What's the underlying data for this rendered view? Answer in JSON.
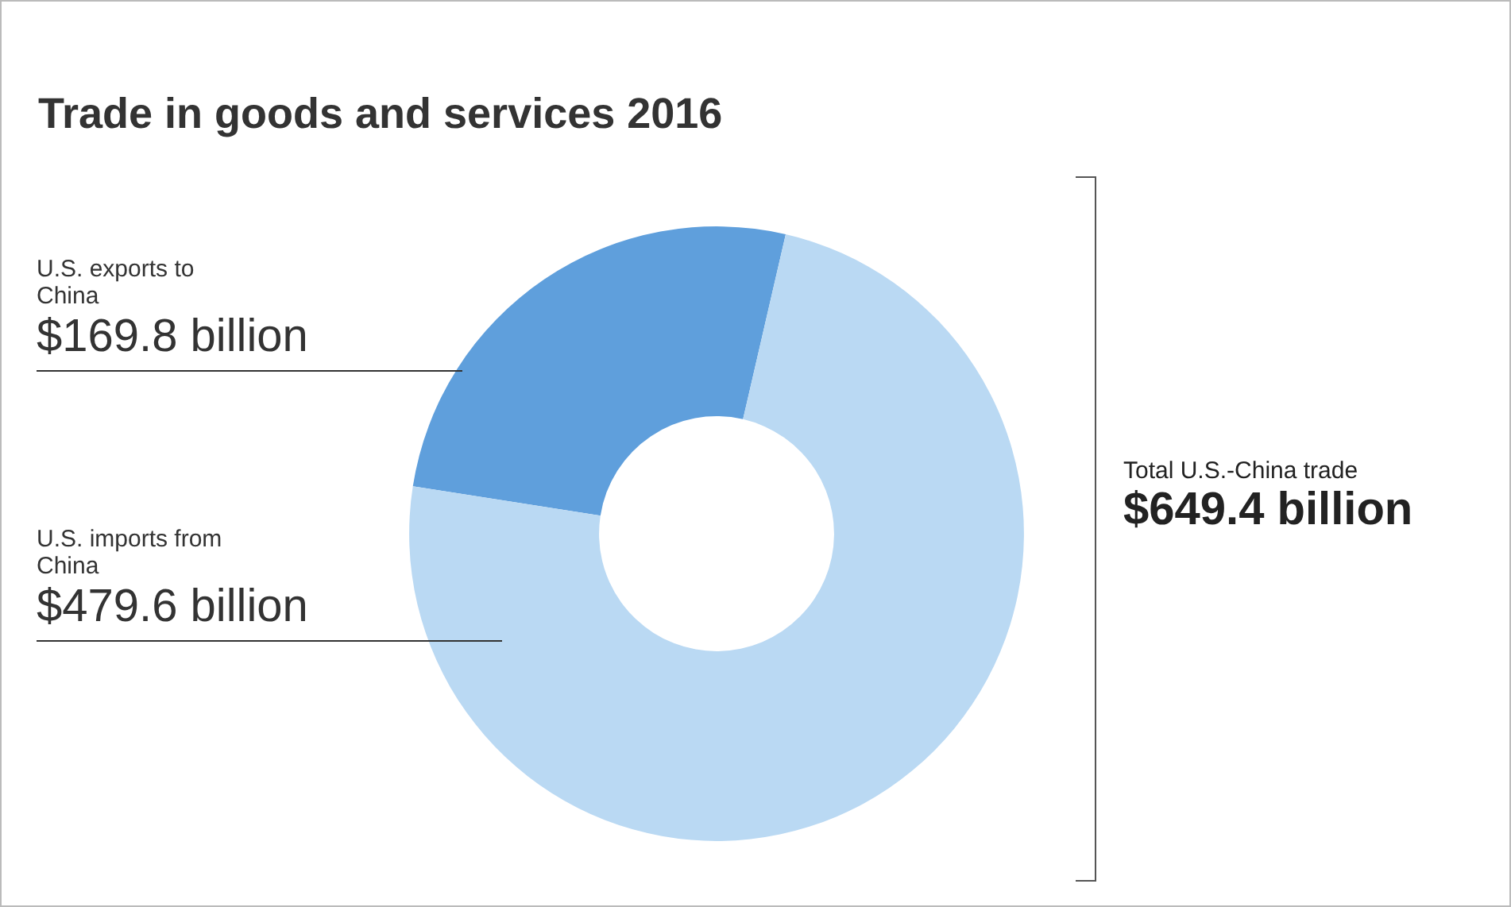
{
  "chart_data": {
    "type": "donut",
    "title": "Trade in goods and services 2016",
    "categories": [
      "U.S. exports to China",
      "U.S. imports from China"
    ],
    "values": [
      169.8,
      479.6
    ],
    "value_labels": [
      "$169.8 billion",
      "$479.6 billion"
    ],
    "colors": [
      "#5f9fdc",
      "#bad9f3"
    ],
    "annotations": [
      "Total U.S.-China trade",
      "$649.4 billion"
    ],
    "legend": false
  }
}
